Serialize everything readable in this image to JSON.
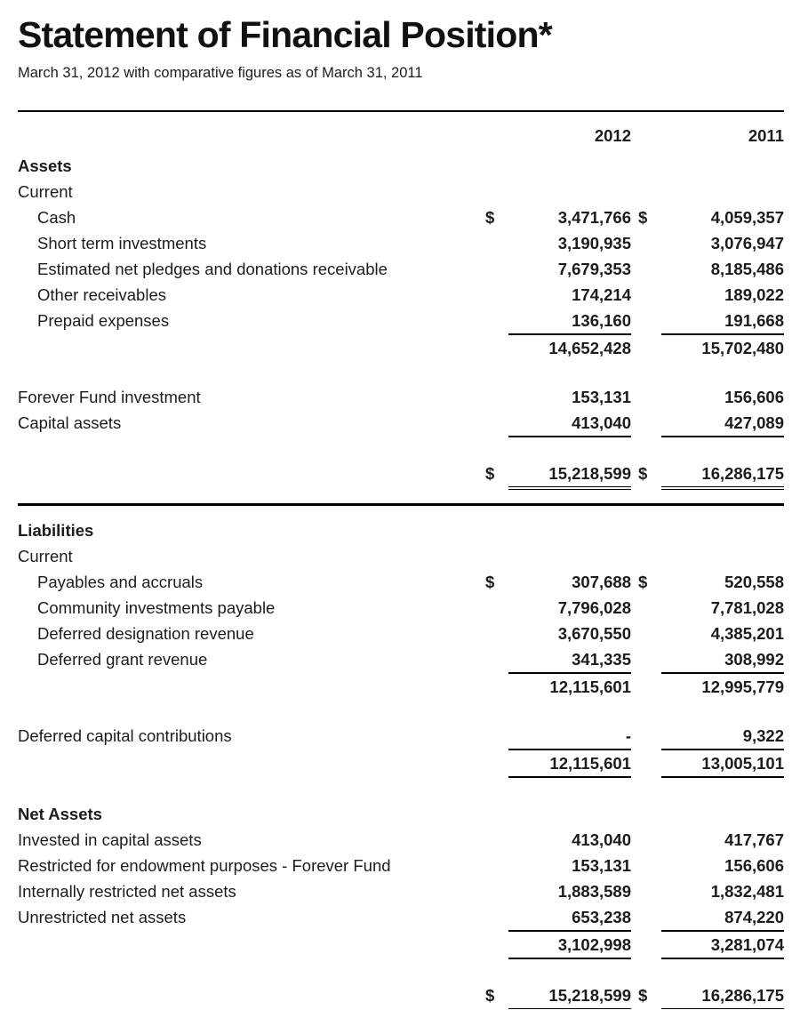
{
  "document": {
    "title": "Statement of Financial Position*",
    "subtitle": "March 31, 2012 with comparative figures as of March 31, 2011"
  },
  "columns": {
    "col1": "2012",
    "col2": "2011"
  },
  "rows": [
    {
      "type": "heading",
      "label": "Assets"
    },
    {
      "type": "subheading",
      "label": "Current"
    },
    {
      "type": "data",
      "indent": 1,
      "label": "Cash",
      "d1": "$",
      "v1": "3,471,766",
      "d2": "$",
      "v2": "4,059,357"
    },
    {
      "type": "data",
      "indent": 1,
      "label": "Short term investments",
      "v1": "3,190,935",
      "v2": "3,076,947"
    },
    {
      "type": "data",
      "indent": 1,
      "label": "Estimated net pledges and donations receivable",
      "v1": "7,679,353",
      "v2": "8,185,486"
    },
    {
      "type": "data",
      "indent": 1,
      "label": "Other receivables",
      "v1": "174,214",
      "v2": "189,022"
    },
    {
      "type": "data",
      "indent": 1,
      "label": "Prepaid expenses",
      "v1": "136,160",
      "v2": "191,668",
      "underline": "single"
    },
    {
      "type": "data",
      "label": "",
      "v1": "14,652,428",
      "v2": "15,702,480"
    },
    {
      "type": "spacer"
    },
    {
      "type": "data",
      "label": "Forever Fund investment",
      "v1": "153,131",
      "v2": "156,606"
    },
    {
      "type": "data",
      "label": "Capital assets",
      "v1": "413,040",
      "v2": "427,089",
      "underline": "single"
    },
    {
      "type": "spacer"
    },
    {
      "type": "data",
      "label": "",
      "d1": "$",
      "v1": "15,218,599",
      "d2": "$",
      "v2": "16,286,175",
      "underline": "double"
    },
    {
      "type": "divider"
    },
    {
      "type": "heading",
      "label": "Liabilities"
    },
    {
      "type": "subheading",
      "label": "Current"
    },
    {
      "type": "data",
      "indent": 1,
      "label": "Payables and accruals",
      "d1": "$",
      "v1": "307,688",
      "d2": "$",
      "v2": "520,558"
    },
    {
      "type": "data",
      "indent": 1,
      "label": "Community investments payable",
      "v1": "7,796,028",
      "v2": "7,781,028"
    },
    {
      "type": "data",
      "indent": 1,
      "label": "Deferred designation revenue",
      "v1": "3,670,550",
      "v2": "4,385,201"
    },
    {
      "type": "data",
      "indent": 1,
      "label": "Deferred grant revenue",
      "v1": "341,335",
      "v2": "308,992",
      "underline": "single"
    },
    {
      "type": "data",
      "label": "",
      "v1": "12,115,601",
      "v2": "12,995,779"
    },
    {
      "type": "spacer"
    },
    {
      "type": "data",
      "label": "Deferred capital contributions",
      "v1": "-",
      "v2": "9,322",
      "underline": "single"
    },
    {
      "type": "data",
      "label": "",
      "v1": "12,115,601",
      "v2": "13,005,101",
      "underline": "single"
    },
    {
      "type": "spacer"
    },
    {
      "type": "heading",
      "label": "Net Assets"
    },
    {
      "type": "data",
      "label": "Invested in capital assets",
      "v1": "413,040",
      "v2": "417,767"
    },
    {
      "type": "data",
      "label": "Restricted for endowment purposes - Forever Fund",
      "v1": "153,131",
      "v2": "156,606"
    },
    {
      "type": "data",
      "label": "Internally restricted net assets",
      "v1": "1,883,589",
      "v2": "1,832,481"
    },
    {
      "type": "data",
      "label": "Unrestricted net assets",
      "v1": "653,238",
      "v2": "874,220",
      "underline": "single"
    },
    {
      "type": "data",
      "label": "",
      "v1": "3,102,998",
      "v2": "3,281,074",
      "underline": "single"
    },
    {
      "type": "spacer"
    },
    {
      "type": "data",
      "label": "",
      "d1": "$",
      "v1": "15,218,599",
      "d2": "$",
      "v2": "16,286,175",
      "underline": "double"
    }
  ]
}
